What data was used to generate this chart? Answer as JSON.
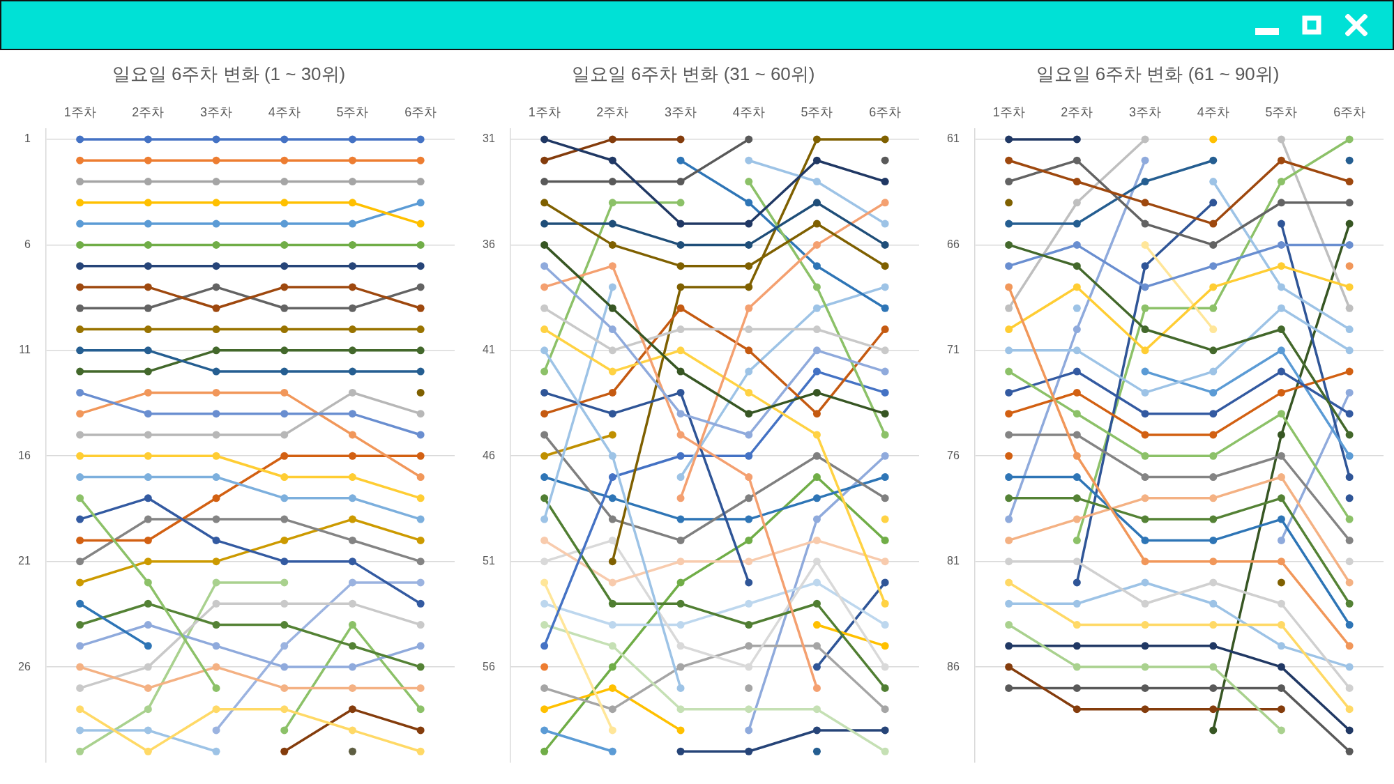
{
  "chart_data": [
    {
      "type": "line",
      "title": "일요일 6주차 변화 (1 ~ 30위)",
      "categories": [
        "1주차",
        "2주차",
        "3주차",
        "4주차",
        "5주차",
        "6주차"
      ],
      "ylim": [
        30.5,
        0.5
      ],
      "yticks": [
        1,
        6,
        11,
        16,
        21,
        26
      ],
      "grid": "y",
      "marker": "circle",
      "line_style": "solid",
      "series": [
        {
          "color": "#4472c4",
          "values": [
            1,
            1,
            1,
            1,
            1,
            1
          ]
        },
        {
          "color": "#ed7d31",
          "values": [
            2,
            2,
            2,
            2,
            2,
            2
          ]
        },
        {
          "color": "#a5a5a5",
          "values": [
            3,
            3,
            3,
            3,
            3,
            3
          ]
        },
        {
          "color": "#ffc000",
          "values": [
            4,
            4,
            4,
            4,
            4,
            5
          ]
        },
        {
          "color": "#5b9bd5",
          "values": [
            5,
            5,
            5,
            5,
            5,
            4
          ]
        },
        {
          "color": "#70ad47",
          "values": [
            6,
            6,
            6,
            6,
            6,
            6
          ]
        },
        {
          "color": "#264478",
          "values": [
            7,
            7,
            7,
            7,
            7,
            7
          ]
        },
        {
          "color": "#9e480e",
          "values": [
            8,
            8,
            9,
            8,
            8,
            9
          ]
        },
        {
          "color": "#636363",
          "values": [
            9,
            9,
            8,
            9,
            9,
            8
          ]
        },
        {
          "color": "#997300",
          "values": [
            10,
            10,
            10,
            10,
            10,
            10
          ]
        },
        {
          "color": "#255e91",
          "values": [
            11,
            11,
            12,
            12,
            12,
            12
          ]
        },
        {
          "color": "#43682b",
          "values": [
            12,
            12,
            11,
            11,
            11,
            11
          ]
        },
        {
          "color": "#698ed0",
          "values": [
            13,
            14,
            14,
            14,
            14,
            15
          ]
        },
        {
          "color": "#f1975a",
          "values": [
            14,
            13,
            13,
            13,
            15,
            17
          ]
        },
        {
          "color": "#b7b7b7",
          "values": [
            15,
            15,
            15,
            15,
            13,
            14
          ]
        },
        {
          "color": "#ffcd33",
          "values": [
            16,
            16,
            16,
            17,
            17,
            18
          ]
        },
        {
          "color": "#7cafdd",
          "values": [
            17,
            17,
            17,
            18,
            18,
            19
          ]
        },
        {
          "color": "#8cc168",
          "values": [
            18,
            22,
            27,
            null,
            null,
            null
          ]
        },
        {
          "color": "#335aa1",
          "values": [
            19,
            18,
            20,
            21,
            21,
            23
          ]
        },
        {
          "color": "#d26012",
          "values": [
            20,
            20,
            18,
            16,
            16,
            16
          ]
        },
        {
          "color": "#848484",
          "values": [
            21,
            19,
            19,
            19,
            20,
            21
          ]
        },
        {
          "color": "#cc9a00",
          "values": [
            22,
            21,
            21,
            20,
            19,
            20
          ]
        },
        {
          "color": "#2e75b6",
          "values": [
            23,
            25,
            null,
            null,
            null,
            null
          ]
        },
        {
          "color": "#548235",
          "values": [
            24,
            23,
            24,
            24,
            25,
            26
          ]
        },
        {
          "color": "#8faadc",
          "values": [
            25,
            24,
            25,
            26,
            26,
            25
          ]
        },
        {
          "color": "#f4b183",
          "values": [
            26,
            27,
            26,
            27,
            27,
            27
          ]
        },
        {
          "color": "#c9c9c9",
          "values": [
            27,
            26,
            23,
            23,
            23,
            24
          ]
        },
        {
          "color": "#ffd966",
          "values": [
            28,
            30,
            28,
            28,
            29,
            30
          ]
        },
        {
          "color": "#9dc3e6",
          "values": [
            29,
            29,
            30,
            null,
            null,
            null
          ]
        },
        {
          "color": "#a9d18e",
          "values": [
            30,
            28,
            22,
            22,
            null,
            null
          ]
        },
        {
          "color": "#9bb3e0",
          "values": [
            null,
            null,
            29,
            25,
            22,
            22
          ]
        },
        {
          "color": "#8cc168",
          "values": [
            null,
            null,
            null,
            29,
            24,
            28
          ]
        },
        {
          "color": "#843c0c",
          "values": [
            null,
            null,
            null,
            30,
            28,
            29
          ]
        },
        {
          "color": "#5e5e42",
          "values": [
            null,
            null,
            null,
            null,
            30,
            null
          ]
        },
        {
          "color": "#7f6000",
          "values": [
            null,
            null,
            null,
            null,
            null,
            13
          ]
        }
      ]
    },
    {
      "type": "line",
      "title": "일요일 6주차 변화 (31 ~ 60위)",
      "categories": [
        "1주차",
        "2주차",
        "3주차",
        "4주차",
        "5주차",
        "6주차"
      ],
      "ylim": [
        60.5,
        30.5
      ],
      "yticks": [
        31,
        36,
        41,
        46,
        51,
        56
      ],
      "grid": "y",
      "marker": "circle",
      "line_style": "solid",
      "series": [
        {
          "color": "#203864",
          "values": [
            31,
            32,
            35,
            35,
            32,
            33
          ]
        },
        {
          "color": "#843c0c",
          "values": [
            32,
            31,
            31,
            null,
            null,
            null
          ]
        },
        {
          "color": "#595959",
          "values": [
            33,
            33,
            33,
            31,
            null,
            null
          ]
        },
        {
          "color": "#595959",
          "values": [
            null,
            null,
            null,
            null,
            null,
            32
          ]
        },
        {
          "color": "#7f6000",
          "values": [
            34,
            36,
            37,
            37,
            35,
            37
          ]
        },
        {
          "color": "#1f4e79",
          "values": [
            35,
            35,
            36,
            36,
            34,
            36
          ]
        },
        {
          "color": "#375623",
          "values": [
            36,
            39,
            42,
            44,
            43,
            44
          ]
        },
        {
          "color": "#8faadc",
          "values": [
            37,
            40,
            44,
            45,
            41,
            42
          ]
        },
        {
          "color": "#f4a070",
          "values": [
            38,
            37,
            45,
            47,
            57,
            null
          ]
        },
        {
          "color": "#f4a070",
          "values": [
            null,
            null,
            48,
            39,
            36,
            34
          ]
        },
        {
          "color": "#c9c9c9",
          "values": [
            39,
            41,
            40,
            40,
            40,
            41
          ]
        },
        {
          "color": "#ffd243",
          "values": [
            40,
            42,
            41,
            43,
            45,
            53
          ]
        },
        {
          "color": "#ffd243",
          "values": [
            null,
            null,
            null,
            null,
            null,
            49
          ]
        },
        {
          "color": "#9dc3e6",
          "values": [
            41,
            46,
            57,
            null,
            null,
            null
          ]
        },
        {
          "color": "#8cc168",
          "values": [
            42,
            34,
            34,
            null,
            null,
            null
          ]
        },
        {
          "color": "#8cc168",
          "values": [
            null,
            null,
            null,
            33,
            38,
            45
          ]
        },
        {
          "color": "#2f5597",
          "values": [
            43,
            44,
            43,
            52,
            null,
            null
          ]
        },
        {
          "color": "#c55a11",
          "values": [
            44,
            43,
            39,
            41,
            44,
            40
          ]
        },
        {
          "color": "#9dc3e6",
          "values": [
            49,
            38,
            null,
            null,
            null,
            null
          ]
        },
        {
          "color": "#9dc3e6",
          "values": [
            null,
            null,
            null,
            32,
            33,
            35
          ]
        },
        {
          "color": "#2e75b6",
          "values": [
            null,
            null,
            32,
            34,
            37,
            39
          ]
        },
        {
          "color": "#7f6000",
          "values": [
            null,
            51,
            38,
            38,
            31,
            31
          ]
        },
        {
          "color": "#9dc3e6",
          "values": [
            null,
            null,
            47,
            42,
            39,
            38
          ]
        },
        {
          "color": "#4472c4",
          "values": [
            55,
            47,
            46,
            46,
            42,
            43
          ]
        },
        {
          "color": "#7f7f7f",
          "values": [
            45,
            49,
            50,
            48,
            46,
            48
          ]
        },
        {
          "color": "#bf8f00",
          "values": [
            46,
            45,
            null,
            null,
            null,
            null
          ]
        },
        {
          "color": "#2e75b6",
          "values": [
            47,
            48,
            49,
            49,
            48,
            47
          ]
        },
        {
          "color": "#507e32",
          "values": [
            48,
            53,
            53,
            54,
            53,
            57
          ]
        },
        {
          "color": "#f8cbad",
          "values": [
            50,
            52,
            51,
            51,
            50,
            51
          ]
        },
        {
          "color": "#d9d9d9",
          "values": [
            51,
            50,
            55,
            56,
            51,
            56
          ]
        },
        {
          "color": "#ffe699",
          "values": [
            52,
            59,
            null,
            null,
            null,
            null
          ]
        },
        {
          "color": "#bdd7ee",
          "values": [
            53,
            54,
            54,
            53,
            52,
            54
          ]
        },
        {
          "color": "#c5e0b4",
          "values": [
            54,
            55,
            58,
            58,
            58,
            60
          ]
        },
        {
          "color": "#ed7d31",
          "values": [
            56,
            null,
            null,
            null,
            null,
            null
          ]
        },
        {
          "color": "#a5a5a5",
          "values": [
            57,
            58,
            56,
            55,
            55,
            58
          ]
        },
        {
          "color": "#ffc000",
          "values": [
            58,
            57,
            59,
            null,
            null,
            null
          ]
        },
        {
          "color": "#ffc000",
          "values": [
            null,
            null,
            null,
            null,
            54,
            55
          ]
        },
        {
          "color": "#5b9bd5",
          "values": [
            59,
            60,
            null,
            null,
            null,
            null
          ]
        },
        {
          "color": "#70ad47",
          "values": [
            60,
            56,
            52,
            50,
            47,
            50
          ]
        },
        {
          "color": "#264478",
          "values": [
            null,
            null,
            60,
            60,
            59,
            59
          ]
        },
        {
          "color": "#8faadc",
          "values": [
            null,
            null,
            null,
            59,
            49,
            46
          ]
        },
        {
          "color": "#2f5597",
          "values": [
            null,
            null,
            null,
            null,
            56,
            52
          ]
        },
        {
          "color": "#255e91",
          "values": [
            null,
            null,
            null,
            null,
            60,
            null
          ]
        },
        {
          "color": "#a5a5a5",
          "values": [
            null,
            null,
            null,
            57,
            null,
            null
          ]
        }
      ]
    },
    {
      "type": "line",
      "title": "일요일 6주차 변화 (61 ~ 90위)",
      "categories": [
        "1주차",
        "2주차",
        "3주차",
        "4주차",
        "5주차",
        "6주차"
      ],
      "ylim": [
        90.5,
        60.5
      ],
      "yticks": [
        61,
        66,
        71,
        76,
        81,
        86
      ],
      "grid": "y",
      "marker": "circle",
      "line_style": "solid",
      "series": [
        {
          "color": "#203864",
          "values": [
            61,
            61,
            null,
            null,
            null,
            null
          ]
        },
        {
          "color": "#7f6000",
          "values": [
            64,
            null,
            null,
            null,
            null,
            null
          ]
        },
        {
          "color": "#9e480e",
          "values": [
            62,
            63,
            64,
            65,
            62,
            63
          ]
        },
        {
          "color": "#636363",
          "values": [
            63,
            62,
            65,
            66,
            64,
            64
          ]
        },
        {
          "color": "#255e91",
          "values": [
            65,
            65,
            63,
            62,
            null,
            null
          ]
        },
        {
          "color": "#255e91",
          "values": [
            null,
            null,
            null,
            null,
            null,
            62
          ]
        },
        {
          "color": "#43682b",
          "values": [
            66,
            67,
            70,
            71,
            70,
            75
          ]
        },
        {
          "color": "#698ed0",
          "values": [
            67,
            66,
            68,
            67,
            66,
            66
          ]
        },
        {
          "color": "#f1975a",
          "values": [
            68,
            76,
            81,
            81,
            81,
            85
          ]
        },
        {
          "color": "#bfbfbf",
          "values": [
            69,
            64,
            61,
            null,
            null,
            null
          ]
        },
        {
          "color": "#ffcd33",
          "values": [
            70,
            68,
            71,
            68,
            67,
            68
          ]
        },
        {
          "color": "#9dc3e6",
          "values": [
            71,
            71,
            73,
            72,
            69,
            71
          ]
        },
        {
          "color": "#8cc168",
          "values": [
            72,
            74,
            76,
            76,
            74,
            79
          ]
        },
        {
          "color": "#335aa1",
          "values": [
            73,
            72,
            74,
            74,
            72,
            74
          ]
        },
        {
          "color": "#d26012",
          "values": [
            74,
            73,
            75,
            75,
            73,
            72
          ]
        },
        {
          "color": "#848484",
          "values": [
            75,
            75,
            77,
            77,
            76,
            80
          ]
        },
        {
          "color": "#d26012",
          "values": [
            76,
            null,
            null,
            null,
            null,
            null
          ]
        },
        {
          "color": "#2e75b6",
          "values": [
            77,
            77,
            80,
            80,
            79,
            84
          ]
        },
        {
          "color": "#548235",
          "values": [
            78,
            78,
            79,
            79,
            78,
            83
          ]
        },
        {
          "color": "#8faadc",
          "values": [
            79,
            70,
            62,
            null,
            null,
            null
          ]
        },
        {
          "color": "#f4b183",
          "values": [
            80,
            79,
            78,
            78,
            77,
            82
          ]
        },
        {
          "color": "#d0d0d0",
          "values": [
            81,
            81,
            83,
            82,
            83,
            87
          ]
        },
        {
          "color": "#ffd966",
          "values": [
            82,
            84,
            84,
            84,
            84,
            88
          ]
        },
        {
          "color": "#9dc3e6",
          "values": [
            83,
            83,
            82,
            83,
            85,
            86
          ]
        },
        {
          "color": "#a9d18e",
          "values": [
            84,
            86,
            86,
            86,
            89,
            null
          ]
        },
        {
          "color": "#203864",
          "values": [
            85,
            85,
            85,
            85,
            86,
            89
          ]
        },
        {
          "color": "#843c0c",
          "values": [
            86,
            88,
            88,
            88,
            88,
            null
          ]
        },
        {
          "color": "#595959",
          "values": [
            87,
            87,
            87,
            87,
            87,
            90
          ]
        },
        {
          "color": "#5b9bd5",
          "values": [
            null,
            null,
            72,
            73,
            71,
            76
          ]
        },
        {
          "color": "#9dc3e6",
          "values": [
            null,
            null,
            null,
            63,
            68,
            70
          ]
        },
        {
          "color": "#9dc3e6",
          "values": [
            null,
            69,
            null,
            null,
            null,
            null
          ]
        },
        {
          "color": "#ffe699",
          "values": [
            null,
            null,
            66,
            70,
            null,
            null
          ]
        },
        {
          "color": "#2f5597",
          "values": [
            null,
            82,
            67,
            64,
            null,
            null
          ]
        },
        {
          "color": "#2f5597",
          "values": [
            null,
            null,
            null,
            null,
            65,
            77
          ]
        },
        {
          "color": "#8cc168",
          "values": [
            null,
            80,
            69,
            69,
            63,
            61
          ]
        },
        {
          "color": "#ffc000",
          "values": [
            null,
            null,
            null,
            61,
            null,
            null
          ]
        },
        {
          "color": "#bfbfbf",
          "values": [
            null,
            null,
            null,
            null,
            61,
            69
          ]
        },
        {
          "color": "#f1975a",
          "values": [
            null,
            null,
            null,
            null,
            null,
            67
          ]
        },
        {
          "color": "#375623",
          "values": [
            null,
            null,
            null,
            89,
            75,
            65
          ]
        },
        {
          "color": "#7f6000",
          "values": [
            null,
            null,
            null,
            null,
            82,
            null
          ]
        },
        {
          "color": "#8faadc",
          "values": [
            null,
            null,
            null,
            null,
            80,
            73
          ]
        },
        {
          "color": "#2f5597",
          "values": [
            null,
            null,
            null,
            null,
            null,
            78
          ]
        },
        {
          "color": "#d0d0d0",
          "values": [
            null,
            null,
            null,
            null,
            null,
            81
          ]
        }
      ]
    }
  ]
}
